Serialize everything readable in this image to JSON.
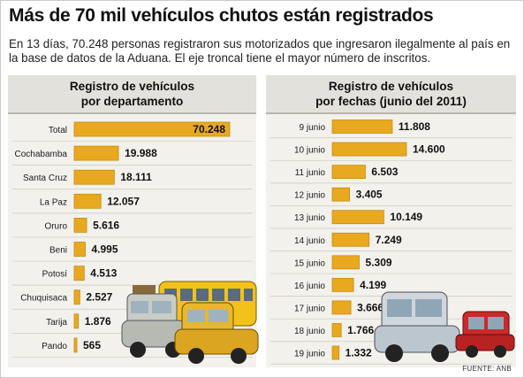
{
  "title": "Más de 70 mil vehículos chutos están registrados",
  "subtitle": "En 13 días, 70.248 personas registraron sus motorizados que ingresaron ilegalmente al país en la base de datos de la Aduana. El eje troncal tiene el mayor número de inscritos.",
  "source": "FUENTE: ANB",
  "colors": {
    "bar": "#e8a920",
    "bar_edge": "#c78b10",
    "panel": "#f3f1ec",
    "header": "#e3e1dc"
  },
  "illustration_icons": [
    "cars-and-bus-illustration",
    "cars-illustration"
  ],
  "chart_data": [
    {
      "type": "bar",
      "orientation": "horizontal",
      "title_lines": [
        "Registro de vehículos",
        "por departamento"
      ],
      "categories": [
        "Total",
        "Cochabamba",
        "Santa Cruz",
        "La Paz",
        "Oruro",
        "Beni",
        "Potosí",
        "Chuquisaca",
        "Tarija",
        "Pando"
      ],
      "values": [
        70248,
        19988,
        18111,
        12057,
        5616,
        4995,
        4513,
        2527,
        1876,
        565
      ],
      "labels": [
        "70.248",
        "19.988",
        "18.111",
        "12.057",
        "5.616",
        "4.995",
        "4.513",
        "2.527",
        "1.876",
        "565"
      ]
    },
    {
      "type": "bar",
      "orientation": "horizontal",
      "title_lines": [
        "Registro de vehículos",
        "por fechas (junio del 2011)"
      ],
      "categories": [
        "9 junio",
        "10 junio",
        "11 junio",
        "12 junio",
        "13 junio",
        "14 junio",
        "15 junio",
        "16 junio",
        "17 junio",
        "18 junio",
        "19 junio"
      ],
      "values": [
        11808,
        14600,
        6503,
        3405,
        10149,
        7249,
        5309,
        4199,
        3666,
        1766,
        1332
      ],
      "labels": [
        "11.808",
        "14.600",
        "6.503",
        "3.405",
        "10.149",
        "7.249",
        "5.309",
        "4.199",
        "3.666",
        "1.766",
        "1.332"
      ]
    }
  ]
}
